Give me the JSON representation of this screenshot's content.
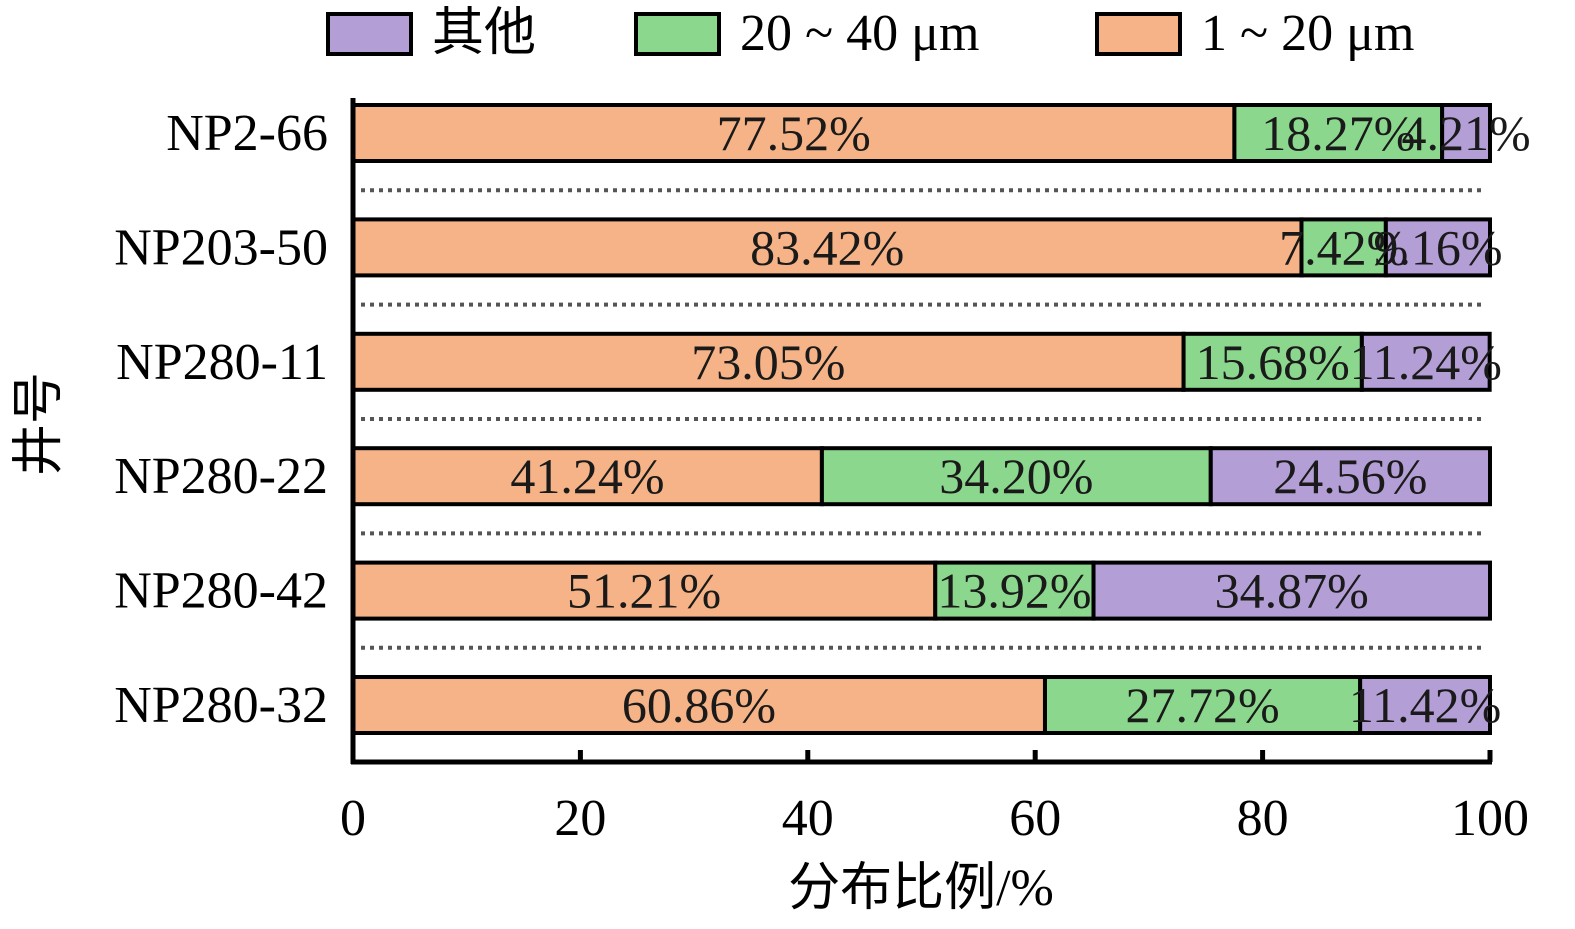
{
  "chart_data": {
    "type": "bar",
    "orientation": "horizontal",
    "stacked": true,
    "categories": [
      "NP2-66",
      "NP203-50",
      "NP280-11",
      "NP280-22",
      "NP280-42",
      "NP280-32"
    ],
    "series": [
      {
        "name": "1 ~ 20 μm",
        "color": "#F5B387",
        "values": [
          77.52,
          83.42,
          73.05,
          41.24,
          51.21,
          60.86
        ],
        "labels": [
          "77.52%",
          "83.42%",
          "73.05%",
          "41.24%",
          "51.21%",
          "60.86%"
        ]
      },
      {
        "name": "20 ~ 40 μm",
        "color": "#8CD78E",
        "values": [
          18.27,
          7.42,
          15.68,
          34.2,
          13.92,
          27.72
        ],
        "labels": [
          "18.27%",
          "7.42%",
          "15.68%",
          "34.20%",
          "13.92%",
          "27.72%"
        ]
      },
      {
        "name": "其他",
        "color": "#B39FD6",
        "values": [
          4.21,
          9.16,
          11.24,
          24.56,
          34.87,
          11.42
        ],
        "labels": [
          "4.21%",
          "9.16%",
          "11.24%",
          "24.56%",
          "34.87%",
          "11.42%"
        ]
      }
    ],
    "legend_order": [
      "其他",
      "20 ~ 40 μm",
      "1 ~ 20 μm"
    ],
    "legend_position": "top",
    "xlabel": "分布比例/%",
    "ylabel": "井号",
    "xlim": [
      0,
      100
    ],
    "xticks": [
      "0",
      "20",
      "40",
      "60",
      "80",
      "100"
    ],
    "grid": false,
    "separators": "dotted lines between bars"
  }
}
